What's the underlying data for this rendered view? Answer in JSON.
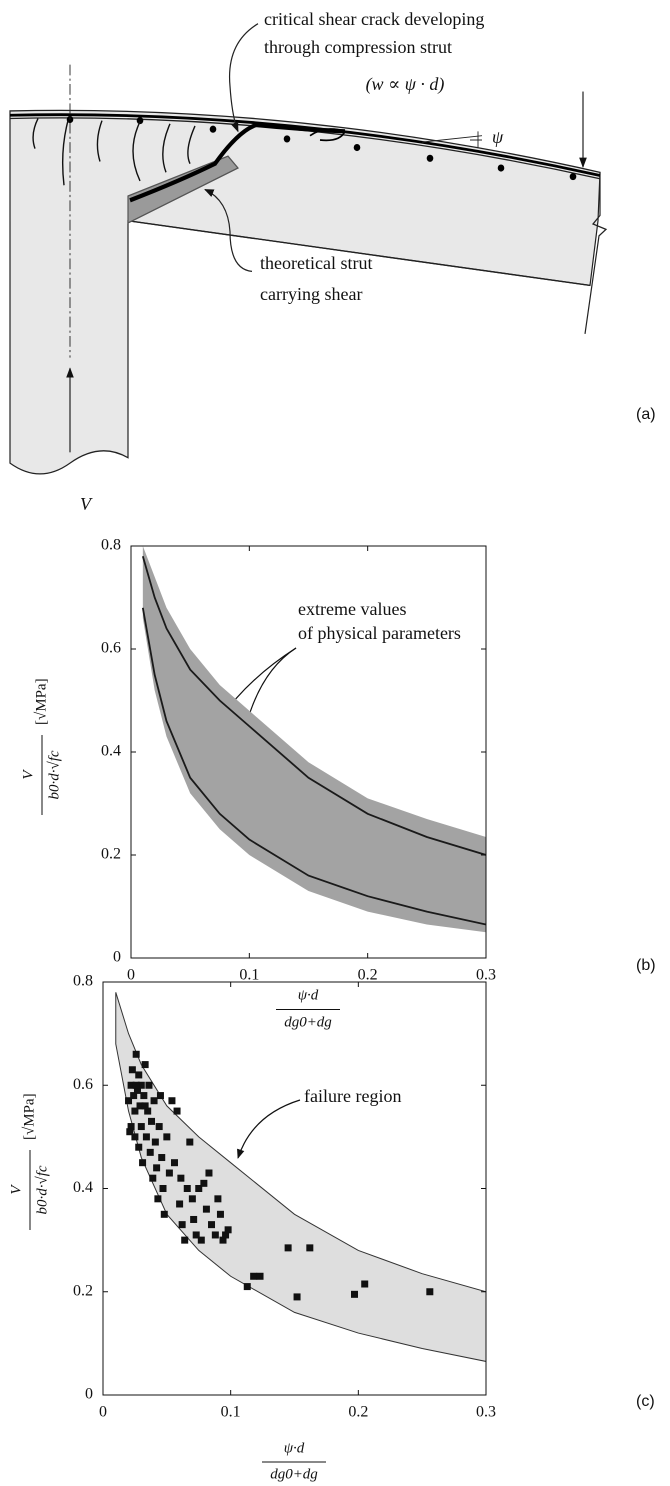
{
  "diagram": {
    "crack_label": [
      "critical shear crack developing",
      "through compression strut"
    ],
    "crack_formula": "(w ∝ ψ · d)",
    "angle_label": "ψ",
    "strut_label": [
      "theoretical strut",
      "carrying shear"
    ],
    "force_label": "V"
  },
  "panel_labels": [
    "(a)",
    "(b)",
    "(c)"
  ],
  "chart_data": [
    {
      "type": "line",
      "x": [
        0.01,
        0.02,
        0.03,
        0.05,
        0.075,
        0.1,
        0.15,
        0.2,
        0.25,
        0.3
      ],
      "series": [
        {
          "color": "#1a1a1a",
          "values": [
            0.78,
            0.7,
            0.64,
            0.56,
            0.5,
            0.45,
            0.35,
            0.28,
            0.235,
            0.2
          ]
        },
        {
          "color": "#1a1a1a",
          "values": [
            0.68,
            0.55,
            0.46,
            0.35,
            0.28,
            0.23,
            0.16,
            0.12,
            0.09,
            0.065
          ]
        }
      ],
      "band": {
        "color": "#a3a3a3",
        "x": [
          0.01,
          0.02,
          0.03,
          0.05,
          0.075,
          0.1,
          0.15,
          0.2,
          0.25,
          0.3
        ],
        "upper": [
          0.8,
          0.74,
          0.68,
          0.6,
          0.53,
          0.48,
          0.38,
          0.31,
          0.27,
          0.235
        ],
        "lower": [
          0.66,
          0.52,
          0.43,
          0.32,
          0.25,
          0.2,
          0.13,
          0.09,
          0.065,
          0.05
        ]
      },
      "ylabel": {
        "numerator": "V",
        "denominator": "b0·d·√fc",
        "unit": "[√MPa]"
      },
      "xlabel": {
        "numerator": "ψ·d",
        "denominator": "dg0+dg"
      },
      "annotation": [
        "extreme values",
        "of physical parameters"
      ],
      "xlim": [
        0,
        0.3
      ],
      "ylim": [
        0,
        0.8
      ],
      "xticks": [
        0,
        0.1,
        0.2,
        0.3
      ],
      "yticks": [
        0,
        0.2,
        0.4,
        0.6,
        0.8
      ],
      "grid": false
    },
    {
      "type": "scatter",
      "color": "#111111",
      "x": [
        0.02,
        0.022,
        0.022,
        0.023,
        0.024,
        0.025,
        0.025,
        0.026,
        0.027,
        0.028,
        0.028,
        0.029,
        0.03,
        0.03,
        0.031,
        0.032,
        0.033,
        0.034,
        0.035,
        0.036,
        0.037,
        0.038,
        0.039,
        0.04,
        0.041,
        0.042,
        0.043,
        0.044,
        0.045,
        0.046,
        0.047,
        0.048,
        0.05,
        0.052,
        0.054,
        0.056,
        0.058,
        0.06,
        0.061,
        0.062,
        0.064,
        0.066,
        0.068,
        0.07,
        0.071,
        0.073,
        0.075,
        0.077,
        0.079,
        0.081,
        0.083,
        0.085,
        0.088,
        0.09,
        0.092,
        0.094,
        0.096,
        0.098,
        0.021,
        0.026,
        0.033,
        0.113,
        0.118,
        0.123,
        0.145,
        0.152,
        0.162,
        0.197,
        0.205,
        0.256
      ],
      "values": [
        0.57,
        0.6,
        0.52,
        0.63,
        0.58,
        0.55,
        0.5,
        0.66,
        0.59,
        0.62,
        0.48,
        0.56,
        0.6,
        0.52,
        0.45,
        0.58,
        0.64,
        0.5,
        0.55,
        0.6,
        0.47,
        0.53,
        0.42,
        0.57,
        0.49,
        0.44,
        0.38,
        0.52,
        0.58,
        0.46,
        0.4,
        0.35,
        0.5,
        0.43,
        0.57,
        0.45,
        0.55,
        0.37,
        0.42,
        0.33,
        0.3,
        0.4,
        0.49,
        0.38,
        0.34,
        0.31,
        0.4,
        0.3,
        0.41,
        0.36,
        0.43,
        0.33,
        0.31,
        0.38,
        0.35,
        0.3,
        0.31,
        0.32,
        0.51,
        0.6,
        0.56,
        0.21,
        0.23,
        0.23,
        0.285,
        0.19,
        0.285,
        0.195,
        0.215,
        0.2
      ],
      "band": {
        "color": "#dedede",
        "x": [
          0.01,
          0.02,
          0.03,
          0.05,
          0.075,
          0.1,
          0.15,
          0.2,
          0.25,
          0.3
        ],
        "upper": [
          0.78,
          0.7,
          0.64,
          0.56,
          0.5,
          0.45,
          0.35,
          0.28,
          0.235,
          0.2
        ],
        "lower": [
          0.68,
          0.55,
          0.46,
          0.35,
          0.28,
          0.23,
          0.16,
          0.12,
          0.09,
          0.065
        ]
      },
      "ylabel": {
        "numerator": "V",
        "denominator": "b0·d·√fc",
        "unit": "[√MPa]"
      },
      "xlabel": {
        "numerator": "ψ·d",
        "denominator": "dg0+dg"
      },
      "annotation": [
        "failure region"
      ],
      "xlim": [
        0,
        0.3
      ],
      "ylim": [
        0,
        0.8
      ],
      "xticks": [
        0,
        0.1,
        0.2,
        0.3
      ],
      "yticks": [
        0,
        0.2,
        0.4,
        0.6,
        0.8
      ],
      "grid": false
    }
  ]
}
